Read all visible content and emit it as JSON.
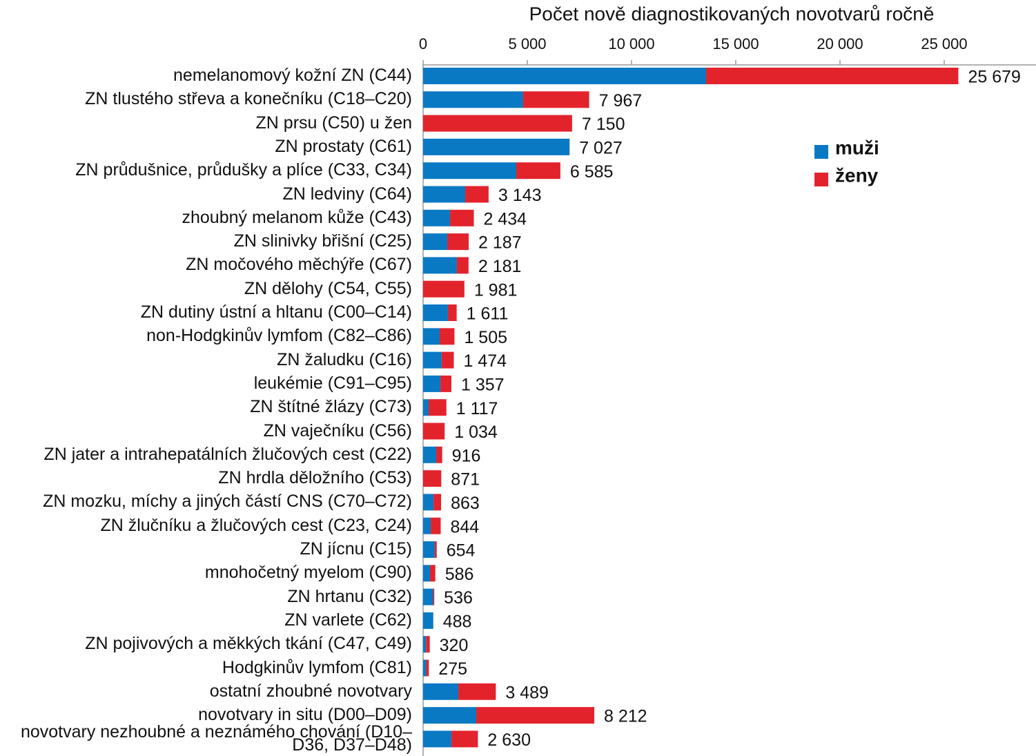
{
  "chart_data": {
    "type": "stacked_bar_horizontal",
    "title": "Počet nově diagnostikovaných novotvarů ročně",
    "categories": [
      "nemelanomový kožní ZN (C44)",
      "ZN tlustého střeva a konečníku (C18–C20)",
      "ZN prsu (C50) u žen",
      "ZN prostaty (C61)",
      "ZN průdušnice, průdušky a plíce (C33, C34)",
      "ZN ledviny (C64)",
      "zhoubný melanom kůže (C43)",
      "ZN slinivky břišní (C25)",
      "ZN močového měchýře (C67)",
      "ZN dělohy (C54, C55)",
      "ZN dutiny ústní a hltanu (C00–C14)",
      "non-Hodgkinův lymfom (C82–C86)",
      "ZN žaludku (C16)",
      "leukémie (C91–C95)",
      "ZN štítné žlázy (C73)",
      "ZN vaječníku (C56)",
      "ZN jater a intrahepatálních žlučových cest (C22)",
      "ZN hrdla děložního (C53)",
      "ZN mozku, míchy a jiných částí CNS (C70–C72)",
      "ZN žlučníku a žlučových cest (C23, C24)",
      "ZN jícnu (C15)",
      "mnohočetný myelom (C90)",
      "ZN hrtanu (C32)",
      "ZN varlete (C62)",
      "ZN pojivových a měkkých tkání (C47, C49)",
      "Hodgkinův lymfom (C81)",
      "ostatní zhoubné novotvary",
      "novotvary in situ (D00–D09)",
      "novotvary nezhoubné a neznámého chování (D10–D36, D37–D48)"
    ],
    "series": [
      {
        "name": "muži",
        "color": "#0a79c4",
        "values": [
          13576,
          4800,
          0,
          7027,
          4470,
          2020,
          1290,
          1160,
          1620,
          0,
          1190,
          795,
          890,
          830,
          265,
          0,
          630,
          0,
          500,
          365,
          560,
          330,
          480,
          488,
          140,
          150,
          1690,
          2550,
          1360
        ]
      },
      {
        "name": "ženy",
        "color": "#e3232c",
        "values": [
          12103,
          3167,
          7150,
          0,
          2115,
          1123,
          1144,
          1027,
          561,
          1981,
          421,
          710,
          584,
          527,
          852,
          1034,
          286,
          871,
          363,
          479,
          94,
          256,
          56,
          0,
          180,
          125,
          1799,
          5662,
          1270
        ]
      }
    ],
    "totals": {
      "values": [
        25679,
        7967,
        7150,
        7027,
        6585,
        3143,
        2434,
        2187,
        2181,
        1981,
        1611,
        1505,
        1474,
        1357,
        1117,
        1034,
        916,
        871,
        863,
        844,
        654,
        586,
        536,
        488,
        320,
        275,
        3489,
        8212,
        2630
      ],
      "value_labels": [
        "25 679",
        "7 967",
        "7 150",
        "7 027",
        "6 585",
        "3 143",
        "2 434",
        "2 187",
        "2 181",
        "1 981",
        "1 611",
        "1 505",
        "1 474",
        "1 357",
        "1 117",
        "1 034",
        "916",
        "871",
        "863",
        "844",
        "654",
        "586",
        "536",
        "488",
        "320",
        "275",
        "3 489",
        "8 212",
        "2 630"
      ]
    },
    "xlim": [
      0,
      30000
    ],
    "xticks": [
      0,
      {
        "value": 5000,
        "label": "5 000"
      },
      {
        "value": 10000,
        "label": "10 000"
      },
      {
        "value": 15000,
        "label": "15 000"
      },
      {
        "value": 20000,
        "label": "20 000"
      },
      {
        "value": 25000,
        "label": "25 000"
      }
    ],
    "legend": "right"
  }
}
